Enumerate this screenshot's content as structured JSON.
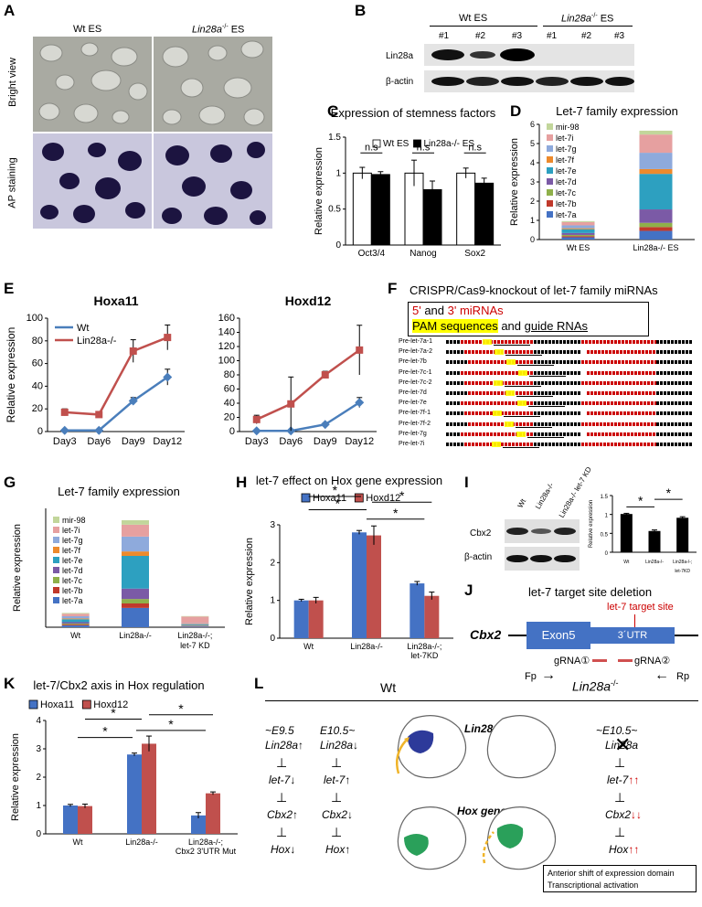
{
  "panels": [
    "A",
    "B",
    "C",
    "D",
    "E",
    "F",
    "G",
    "H",
    "I",
    "J",
    "K",
    "L"
  ],
  "A": {
    "col_wt": "Wt ES",
    "col_ko": "Lin28a",
    "col_ko_sup": "-/-",
    "col_ko_suffix": " ES",
    "row1": "Bright view",
    "row2": "AP staining"
  },
  "B": {
    "group_wt": "Wt ES",
    "group_ko": "Lin28a",
    "group_ko_sup": "-/-",
    "group_ko_suffix": " ES",
    "lanes": [
      "#1",
      "#2",
      "#3",
      "#1",
      "#2",
      "#3"
    ],
    "row1": "Lin28a",
    "row2": "β-actin"
  },
  "chart_data": [
    {
      "id": "C",
      "type": "bar",
      "title": "Expression of stemness factors",
      "ylabel": "Relative expression",
      "ylim": [
        0,
        1.5
      ],
      "yticks": [
        "0",
        "0.5",
        "1",
        "1.5"
      ],
      "categories": [
        "Oct3/4",
        "Nanog",
        "Sox2"
      ],
      "series": [
        {
          "name": "Wt ES",
          "color": "#ffffff",
          "values": [
            1.0,
            1.0,
            1.0
          ],
          "errors": [
            0.08,
            0.18,
            0.07
          ]
        },
        {
          "name": "Lin28a-/- ES",
          "color": "#000000",
          "values": [
            0.98,
            0.77,
            0.86
          ],
          "errors": [
            0.04,
            0.12,
            0.07
          ]
        }
      ],
      "annotations": [
        "n.s",
        "n.s",
        "n.s"
      ]
    },
    {
      "id": "D",
      "type": "stacked-bar",
      "title": "Let-7 family expression",
      "ylabel": "Relative expression",
      "ylim": [
        0,
        6
      ],
      "yticks": [
        "0",
        "1",
        "2",
        "3",
        "4",
        "5",
        "6"
      ],
      "categories": [
        "Wt ES",
        "Lin28a-/- ES"
      ],
      "series": [
        {
          "name": "let-7a",
          "color": "#4472c4",
          "values": [
            0.12,
            0.45
          ]
        },
        {
          "name": "let-7b",
          "color": "#c0392b",
          "values": [
            0.06,
            0.2
          ]
        },
        {
          "name": "let-7c",
          "color": "#8fb04a",
          "values": [
            0.06,
            0.22
          ]
        },
        {
          "name": "let-7d",
          "color": "#7b5aa6",
          "values": [
            0.1,
            0.7
          ]
        },
        {
          "name": "let-7e",
          "color": "#2da0c0",
          "values": [
            0.2,
            1.85
          ]
        },
        {
          "name": "let-7f",
          "color": "#ed8a2c",
          "values": [
            0.05,
            0.25
          ]
        },
        {
          "name": "let-7g",
          "color": "#8eaadc",
          "values": [
            0.15,
            0.85
          ]
        },
        {
          "name": "let-7i",
          "color": "#e6a0a0",
          "values": [
            0.17,
            0.95
          ]
        },
        {
          "name": "mir-98",
          "color": "#c2d69b",
          "values": [
            0.05,
            0.2
          ]
        }
      ],
      "legend_order": [
        "mir-98",
        "let-7i",
        "let-7g",
        "let-7f",
        "let-7e",
        "let-7d",
        "let-7c",
        "let-7b",
        "let-7a"
      ]
    },
    {
      "id": "E1",
      "type": "line",
      "title": "Hoxa11",
      "ylabel": "Relative expression",
      "ylim": [
        0,
        100
      ],
      "yticks": [
        "0",
        "20",
        "40",
        "60",
        "80",
        "100"
      ],
      "categories": [
        "Day3",
        "Day6",
        "Day9",
        "Day12"
      ],
      "series": [
        {
          "name": "Wt",
          "color": "#4a7ebb",
          "marker": "diamond",
          "values": [
            1,
            1,
            27,
            48
          ],
          "errors": [
            1,
            1,
            3,
            7
          ]
        },
        {
          "name": "Lin28a-/-",
          "color": "#c0504d",
          "marker": "square",
          "values": [
            17,
            15,
            71,
            83
          ],
          "errors": [
            3,
            2,
            10,
            11
          ]
        }
      ]
    },
    {
      "id": "E2",
      "type": "line",
      "title": "Hoxd12",
      "ylabel": "",
      "ylim": [
        0,
        160
      ],
      "yticks": [
        "0",
        "20",
        "40",
        "60",
        "80",
        "100",
        "120",
        "140",
        "160"
      ],
      "categories": [
        "Day3",
        "Day6",
        "Day9",
        "Day12"
      ],
      "series": [
        {
          "name": "Wt",
          "color": "#4a7ebb",
          "marker": "diamond",
          "values": [
            1,
            1,
            10,
            41
          ],
          "errors": [
            1,
            1,
            2,
            7
          ]
        },
        {
          "name": "Lin28a-/-",
          "color": "#c0504d",
          "marker": "square",
          "values": [
            17,
            39,
            80,
            115
          ],
          "errors": [
            6,
            38,
            5,
            35
          ]
        }
      ]
    },
    {
      "id": "G",
      "type": "stacked-bar",
      "title": "Let-7 family expression",
      "ylabel": "Relative expression",
      "ylim": [
        0,
        8
      ],
      "categories": [
        "Wt",
        "Lin28a-/-",
        "Lin28a-/-; let-7 KD"
      ],
      "series": [
        {
          "name": "let-7a",
          "color": "#4472c4",
          "values": [
            0.12,
            1.3,
            0.05
          ]
        },
        {
          "name": "let-7b",
          "color": "#c0392b",
          "values": [
            0.06,
            0.3,
            0.03
          ]
        },
        {
          "name": "let-7c",
          "color": "#8fb04a",
          "values": [
            0.06,
            0.3,
            0.03
          ]
        },
        {
          "name": "let-7d",
          "color": "#7b5aa6",
          "values": [
            0.1,
            0.7,
            0.03
          ]
        },
        {
          "name": "let-7e",
          "color": "#2da0c0",
          "values": [
            0.2,
            2.2,
            0.05
          ]
        },
        {
          "name": "let-7f",
          "color": "#ed8a2c",
          "values": [
            0.05,
            0.3,
            0.03
          ]
        },
        {
          "name": "let-7g",
          "color": "#8eaadc",
          "values": [
            0.15,
            1.0,
            0.05
          ]
        },
        {
          "name": "let-7i",
          "color": "#e6a0a0",
          "values": [
            0.17,
            0.8,
            0.45
          ]
        },
        {
          "name": "mir-98",
          "color": "#c2d69b",
          "values": [
            0.05,
            0.3,
            0.03
          ]
        }
      ],
      "legend_order": [
        "mir-98",
        "let-7i",
        "let-7g",
        "let-7f",
        "let-7e",
        "let-7d",
        "let-7c",
        "let-7b",
        "let-7a"
      ]
    },
    {
      "id": "H",
      "type": "bar",
      "title": "let-7 effect on Hox gene expression",
      "ylabel": "Relative expression",
      "ylim": [
        0,
        3
      ],
      "yticks": [
        "0",
        "1",
        "2",
        "3"
      ],
      "categories": [
        "Wt",
        "Lin28a-/-",
        "Lin28a-/-;\nlet-7KD"
      ],
      "category_lines": [
        [
          "Wt"
        ],
        [
          "Lin28a-/-"
        ],
        [
          "Lin28a-/-;",
          "let-7KD"
        ]
      ],
      "series": [
        {
          "name": "Hoxa11",
          "color": "#4472c4",
          "values": [
            1.0,
            2.8,
            1.45
          ],
          "errors": [
            0.03,
            0.05,
            0.05
          ]
        },
        {
          "name": "Hoxd12",
          "color": "#c0504d",
          "values": [
            1.0,
            2.72,
            1.12
          ],
          "errors": [
            0.08,
            0.25,
            0.1
          ]
        }
      ],
      "annotations": [
        "*",
        "*",
        "*",
        "*"
      ]
    },
    {
      "id": "I",
      "type": "bar",
      "ylabel": "Relative expression",
      "ylim": [
        0,
        1.5
      ],
      "yticks": [
        "0",
        "0.5",
        "1",
        "1.5"
      ],
      "categories": [
        "Wt",
        "Lin28a-/-",
        "Lin28a-/-; let-7KD"
      ],
      "category_lines": [
        [
          "Wt"
        ],
        [
          "Lin28a-/-"
        ],
        [
          "Lin28a-/-;",
          "let-7KD"
        ]
      ],
      "series": [
        {
          "name": "Cbx2",
          "color": "#000000",
          "values": [
            1.0,
            0.55,
            0.9
          ],
          "errors": [
            0.03,
            0.04,
            0.04
          ]
        }
      ],
      "annotations": [
        "*",
        "*"
      ]
    },
    {
      "id": "K",
      "type": "bar",
      "title": "let-7/Cbx2 axis in Hox regulation",
      "ylabel": "Relative expression",
      "ylim": [
        0,
        4
      ],
      "yticks": [
        "0",
        "1",
        "2",
        "3",
        "4"
      ],
      "categories": [
        "Wt",
        "Lin28a-/-",
        "Lin28a-/-; Cbx2 3'UTR Mut"
      ],
      "category_lines": [
        [
          "Wt"
        ],
        [
          "Lin28a-/-"
        ],
        [
          "Lin28a-/-;",
          "Cbx2 3'UTR Mut"
        ]
      ],
      "series": [
        {
          "name": "Hoxa11",
          "color": "#4472c4",
          "values": [
            1.0,
            2.8,
            0.65
          ],
          "errors": [
            0.04,
            0.05,
            0.1
          ]
        },
        {
          "name": "Hoxd12",
          "color": "#c0504d",
          "values": [
            0.98,
            3.18,
            1.43
          ],
          "errors": [
            0.07,
            0.27,
            0.05
          ]
        }
      ],
      "annotations": [
        "*",
        "*",
        "*",
        "*"
      ]
    }
  ],
  "F": {
    "title": "CRISPR/Cas9-knockout of let-7 family miRNAs",
    "legend_line1_part1": "5' ",
    "legend_line1_part2": "and ",
    "legend_line1_part3": "3' miRNAs",
    "legend_line2_part1": "PAM sequences",
    "legend_line2_part2": " and ",
    "legend_line2_part3": "guide RNAs",
    "rows": [
      "Pre-let-7a-1",
      "Pre-let-7a-2",
      "Pre-let-7b",
      "Pre-let-7c-1",
      "Pre-let-7c-2",
      "Pre-let-7d",
      "Pre-let-7e",
      "Pre-let-7f-1",
      "Pre-let-7f-2",
      "Pre-let-7g",
      "Pre-let-7i"
    ]
  },
  "I": {
    "lanes": [
      "Wt",
      "Lin28a-/-",
      "Lin28a-/- let-7 KD"
    ],
    "row1": "Cbx2",
    "row2": "β-actin"
  },
  "J": {
    "title": "let-7 target site deletion",
    "gene": "Cbx2",
    "exon": "Exon5",
    "utr": "3´UTR",
    "site": "let-7 target site",
    "grna1": "gRNA①",
    "grna2": "gRNA②",
    "fp": "Fp",
    "rp": "Rp"
  },
  "L": {
    "wt_header": "Wt",
    "ko_header": "Lin28a",
    "ko_header_sup": "-/-",
    "col1_stage": "~E9.5",
    "col1": [
      "Lin28a↑",
      "let-7↓",
      "Cbx2↑",
      "Hox↓"
    ],
    "col2_stage": "E10.5~",
    "col2": [
      "Lin28a↓",
      "let-7↑",
      "Cbx2↓",
      "Hox↑"
    ],
    "col3_stage": "~E10.5~",
    "col3": [
      "Lin28a",
      "let-7",
      "Cbx2",
      "Hox"
    ],
    "col3_marks": [
      "↑↑",
      "↓↓",
      "↑↑"
    ],
    "embryo_label1": "Lin28a",
    "embryo_label2": "Hox genes",
    "box_line1": "Anterior shift of expression domain",
    "box_line2": "Transcriptional activation"
  },
  "colors": {
    "blue": "#4472c4",
    "red": "#c0504d",
    "seqred": "#cc0000",
    "pam": "#ffff00"
  }
}
